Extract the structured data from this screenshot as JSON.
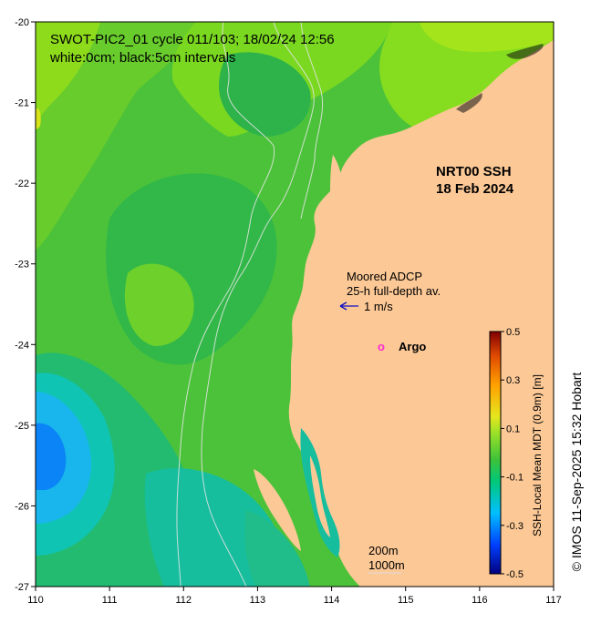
{
  "map": {
    "title_line1": "SWOT-PIC2_01 cycle 011/103; 18/02/24 12:56",
    "title_line2": "white:0cm; black:5cm intervals",
    "product_line1": "NRT00 SSH",
    "product_line2": "18 Feb 2024",
    "adcp_line1": "Moored ADCP",
    "adcp_line2": "25-h full-depth av.",
    "scale_arrow_label": "1 m/s",
    "argo_label": "Argo",
    "argo_marker": "o",
    "contour_200m": "200m",
    "contour_1000m": "1000m",
    "lat_ticks": [
      "-20",
      "-21",
      "-22",
      "-23",
      "-24",
      "-25",
      "-26",
      "-27"
    ],
    "lon_ticks": [
      "110",
      "111",
      "112",
      "113",
      "114",
      "115",
      "116",
      "117"
    ],
    "extent": {
      "lon": [
        110,
        117
      ],
      "lat": [
        -27,
        -20
      ]
    },
    "colors": {
      "land": "#fbc896",
      "ocean_base": "#4cc23a",
      "argo": "#ff2ad4",
      "arrow": "#1010c0"
    }
  },
  "colorbar": {
    "label": "SSH-Local Mean MDT (0.9m) [m]",
    "ticks": [
      "0.5",
      "0.3",
      "0.1",
      "-0.1",
      "-0.3",
      "-0.5"
    ],
    "range": [
      -0.5,
      0.5
    ],
    "colormap": [
      "#00007f",
      "#0040ff",
      "#00bfff",
      "#00c87a",
      "#3cc23a",
      "#9ae028",
      "#e6e61e",
      "#ffa000",
      "#e04a00",
      "#800000"
    ]
  },
  "credit": "© IMOS 11-Sep-2025 15:32 Hobart"
}
